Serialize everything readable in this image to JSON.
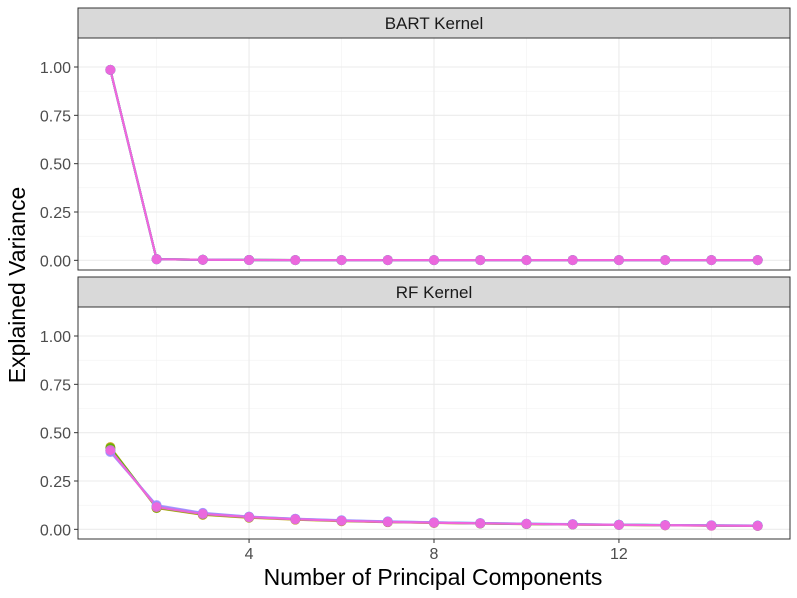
{
  "chart_data": {
    "type": "line",
    "xlabel": "Number of Principal Components",
    "ylabel": "Explained Variance",
    "xlim": [
      0.3,
      15.7
    ],
    "ylim": [
      -0.05,
      1.15
    ],
    "x_ticks": [
      4,
      8,
      12
    ],
    "y_ticks": [
      0,
      0.25,
      0.5,
      0.75,
      1
    ],
    "y_tick_labels": [
      "0.00",
      "0.25",
      "0.50",
      "0.75",
      "1.00"
    ],
    "grid": true,
    "legend": "none",
    "panels": [
      {
        "title": "BART Kernel",
        "series": [
          {
            "color": "#c49a00",
            "x": [
              1,
              2,
              3,
              4,
              5,
              6,
              7,
              8,
              9,
              10,
              11,
              12,
              13,
              14,
              15
            ],
            "y": [
              0.985,
              0.006,
              0.003,
              0.002,
              0.001,
              0.001,
              0.001,
              0.001,
              0.001,
              0.001,
              0.001,
              0.001,
              0.001,
              0.001,
              0.001
            ]
          },
          {
            "color": "#53b400",
            "x": [
              1,
              2,
              3,
              4,
              5,
              6,
              7,
              8,
              9,
              10,
              11,
              12,
              13,
              14,
              15
            ],
            "y": [
              0.985,
              0.006,
              0.003,
              0.002,
              0.001,
              0.001,
              0.001,
              0.001,
              0.001,
              0.001,
              0.001,
              0.001,
              0.001,
              0.001,
              0.001
            ]
          },
          {
            "color": "#00c094",
            "x": [
              1,
              2,
              3,
              4,
              5,
              6,
              7,
              8,
              9,
              10,
              11,
              12,
              13,
              14,
              15
            ],
            "y": [
              0.985,
              0.006,
              0.003,
              0.002,
              0.001,
              0.001,
              0.001,
              0.001,
              0.001,
              0.001,
              0.001,
              0.001,
              0.001,
              0.001,
              0.001
            ]
          },
          {
            "color": "#00b6eb",
            "x": [
              1,
              2,
              3,
              4,
              5,
              6,
              7,
              8,
              9,
              10,
              11,
              12,
              13,
              14,
              15
            ],
            "y": [
              0.985,
              0.006,
              0.003,
              0.002,
              0.001,
              0.001,
              0.001,
              0.001,
              0.001,
              0.001,
              0.001,
              0.001,
              0.001,
              0.001,
              0.001
            ]
          },
          {
            "color": "#a58aff",
            "x": [
              1,
              2,
              3,
              4,
              5,
              6,
              7,
              8,
              9,
              10,
              11,
              12,
              13,
              14,
              15
            ],
            "y": [
              0.985,
              0.006,
              0.003,
              0.002,
              0.001,
              0.001,
              0.001,
              0.001,
              0.001,
              0.001,
              0.001,
              0.001,
              0.001,
              0.001,
              0.001
            ]
          },
          {
            "color": "#fb61d7",
            "x": [
              1,
              2,
              3,
              4,
              5,
              6,
              7,
              8,
              9,
              10,
              11,
              12,
              13,
              14,
              15
            ],
            "y": [
              0.985,
              0.006,
              0.003,
              0.002,
              0.001,
              0.001,
              0.001,
              0.001,
              0.001,
              0.001,
              0.001,
              0.001,
              0.001,
              0.001,
              0.001
            ]
          }
        ]
      },
      {
        "title": "RF Kernel",
        "series": [
          {
            "color": "#c49a00",
            "x": [
              1,
              2,
              3,
              4,
              5,
              6,
              7,
              8,
              9,
              10,
              11,
              12,
              13,
              14,
              15
            ],
            "y": [
              0.425,
              0.11,
              0.075,
              0.06,
              0.05,
              0.042,
              0.037,
              0.033,
              0.03,
              0.027,
              0.025,
              0.023,
              0.021,
              0.019,
              0.018
            ]
          },
          {
            "color": "#53b400",
            "x": [
              1,
              2,
              3,
              4,
              5,
              6,
              7,
              8,
              9,
              10,
              11,
              12,
              13,
              14,
              15
            ],
            "y": [
              0.42,
              0.112,
              0.078,
              0.062,
              0.052,
              0.044,
              0.038,
              0.034,
              0.031,
              0.028,
              0.025,
              0.023,
              0.021,
              0.02,
              0.018
            ]
          },
          {
            "color": "#00c094",
            "x": [
              1,
              2,
              3,
              4,
              5,
              6,
              7,
              8,
              9,
              10,
              11,
              12,
              13,
              14,
              15
            ],
            "y": [
              0.41,
              0.118,
              0.08,
              0.064,
              0.053,
              0.045,
              0.039,
              0.035,
              0.031,
              0.028,
              0.026,
              0.024,
              0.022,
              0.02,
              0.019
            ]
          },
          {
            "color": "#00b6eb",
            "x": [
              1,
              2,
              3,
              4,
              5,
              6,
              7,
              8,
              9,
              10,
              11,
              12,
              13,
              14,
              15
            ],
            "y": [
              0.405,
              0.12,
              0.082,
              0.065,
              0.054,
              0.046,
              0.04,
              0.036,
              0.032,
              0.029,
              0.026,
              0.024,
              0.022,
              0.02,
              0.019
            ]
          },
          {
            "color": "#a58aff",
            "x": [
              1,
              2,
              3,
              4,
              5,
              6,
              7,
              8,
              9,
              10,
              11,
              12,
              13,
              14,
              15
            ],
            "y": [
              0.4,
              0.125,
              0.085,
              0.066,
              0.055,
              0.047,
              0.041,
              0.036,
              0.032,
              0.029,
              0.027,
              0.024,
              0.022,
              0.021,
              0.019
            ]
          },
          {
            "color": "#fb61d7",
            "x": [
              1,
              2,
              3,
              4,
              5,
              6,
              7,
              8,
              9,
              10,
              11,
              12,
              13,
              14,
              15
            ],
            "y": [
              0.41,
              0.115,
              0.079,
              0.063,
              0.052,
              0.044,
              0.038,
              0.034,
              0.031,
              0.028,
              0.025,
              0.023,
              0.021,
              0.019,
              0.018
            ]
          }
        ]
      }
    ]
  }
}
